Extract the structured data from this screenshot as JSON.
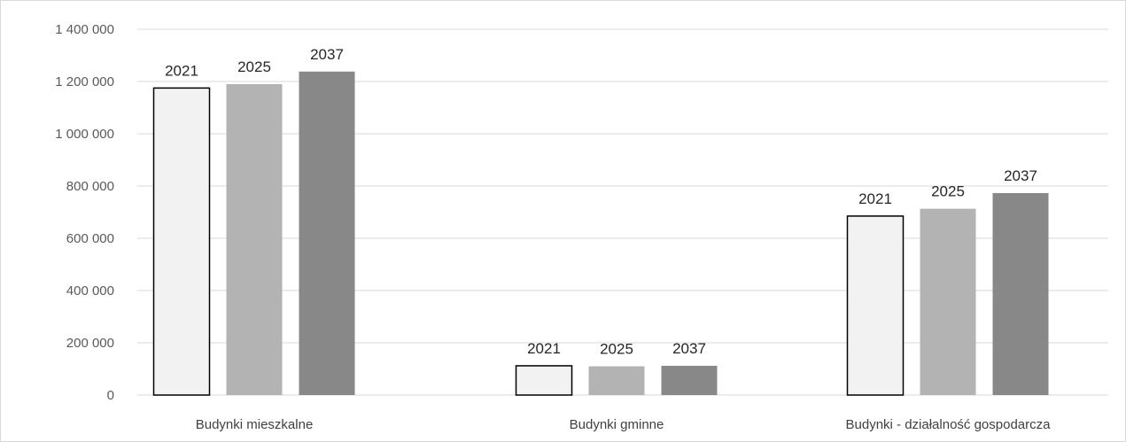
{
  "chart_data": {
    "type": "bar",
    "title": "",
    "xlabel": "",
    "ylabel": "",
    "categories": [
      "Budynki mieszkalne",
      "Budynki gminne",
      "Budynki - działalność gospodarcza"
    ],
    "series": [
      {
        "values": [
          1175000,
          112000,
          685000
        ],
        "color": "#f2f2f2",
        "outline": "#000000",
        "label": "2021"
      },
      {
        "values": [
          1190000,
          110000,
          713000
        ],
        "color": "#b3b3b3",
        "outline": "",
        "label": "2025"
      },
      {
        "values": [
          1238000,
          112000,
          773000
        ],
        "color": "#888888",
        "outline": "",
        "label": "2037"
      }
    ],
    "ylim": [
      0,
      1400000
    ],
    "yticks": [
      0,
      200000,
      400000,
      600000,
      800000,
      1000000,
      1200000,
      1400000
    ],
    "ytick_labels": [
      "0",
      "200 000",
      "400 000",
      "600 000",
      "800 000",
      "1 000 000",
      "1 200 000",
      "1 400 000"
    ],
    "grid": true,
    "gridline_color": "#d9d9d9",
    "legend": "none"
  }
}
